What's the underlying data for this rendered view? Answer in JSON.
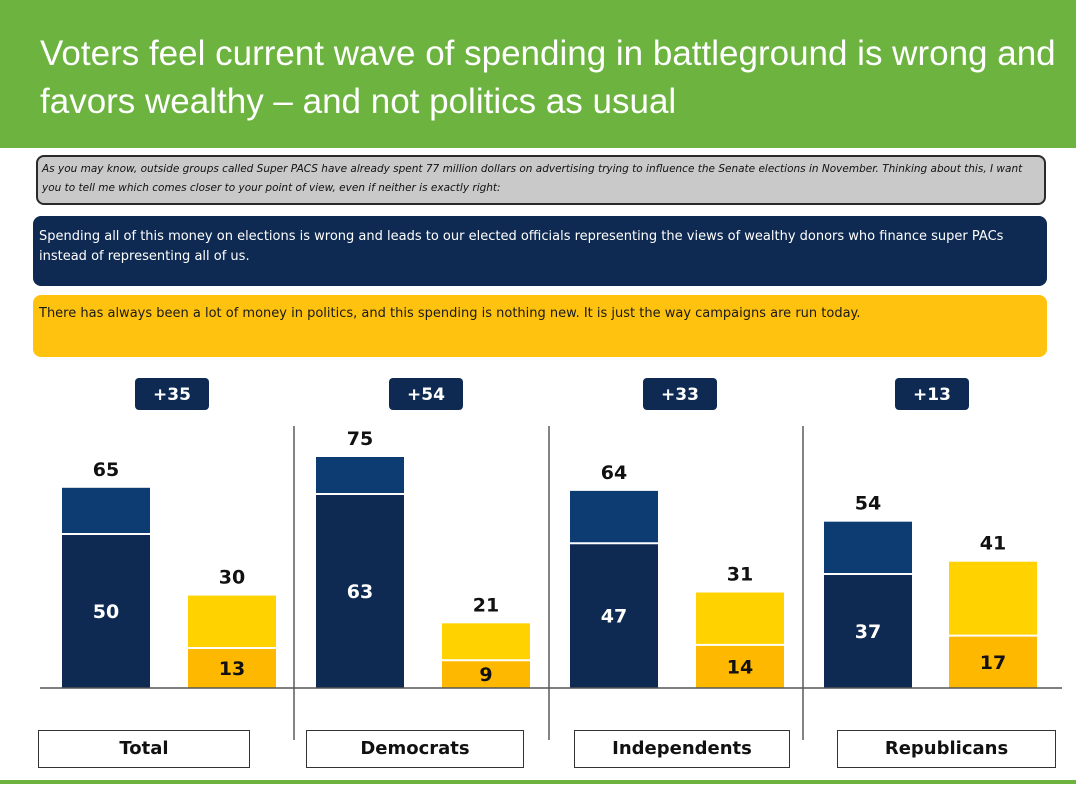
{
  "title": "Voters feel current wave of spending in battleground is wrong and favors wealthy – and not politics as usual",
  "question_text": "As you may know, outside groups called Super PACS have already spent 77 million dollars on advertising trying to influence the Senate elections in November. Thinking about this, I want you to tell me which comes closer to your point of view, even if neither is exactly right:",
  "option_wrong": "Spending all of this money on elections is wrong and leads to our elected  officials representing  the views of wealthy donors who finance super PACs instead of representing all of us.",
  "option_usual": "There  has always  been  a lot of money in politics, and this spending is nothing new.  It is just the way  campaigns are run today.",
  "colors": {
    "header_green": "#6cb33f",
    "navy_dark": "#0e2a52",
    "navy_light": "#0c3c72",
    "gold_light": "#ffd200",
    "gold_dark": "#ffb800"
  },
  "chart_data": {
    "type": "bar",
    "categories": [
      "Total",
      "Democrats",
      "Independents",
      "Republicans"
    ],
    "series": [
      {
        "totals": [
          65,
          75,
          64,
          54
        ],
        "strong": [
          50,
          63,
          47,
          37
        ]
      },
      {
        "totals": [
          30,
          21,
          31,
          41
        ],
        "strong": [
          13,
          9,
          14,
          17
        ]
      }
    ],
    "margins": [
      "+35",
      "+54",
      "+33",
      "+13"
    ],
    "ylim": [
      0,
      80
    ]
  }
}
